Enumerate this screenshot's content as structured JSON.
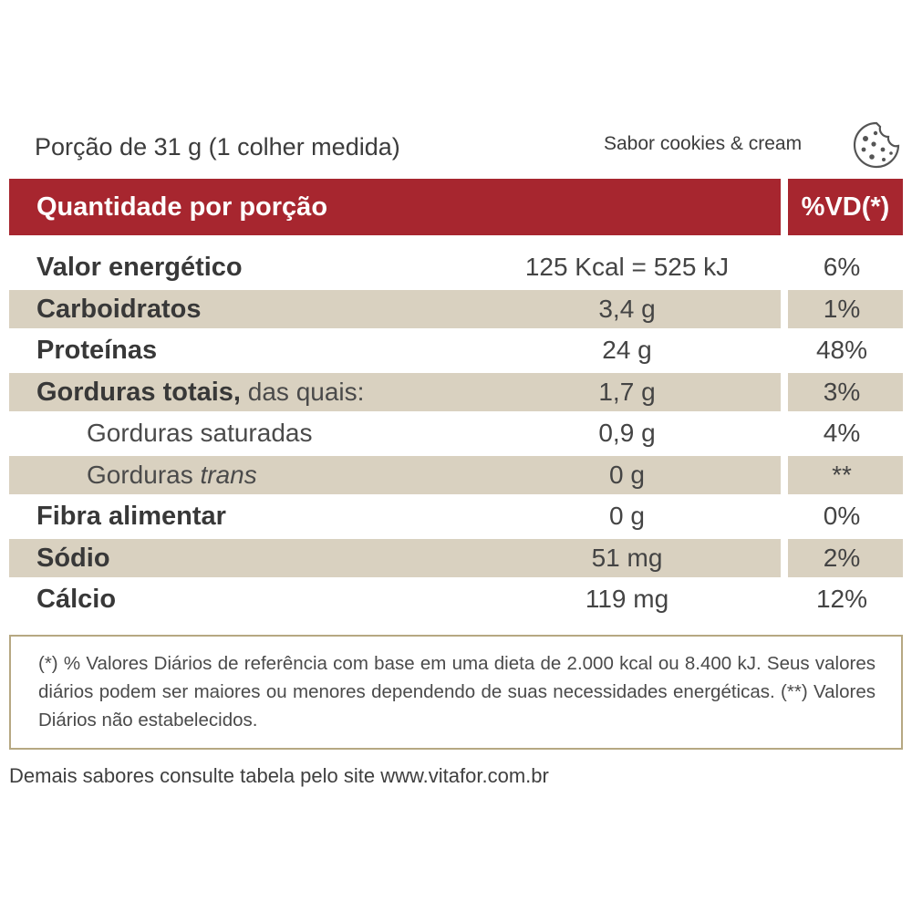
{
  "portion": "Porção de 31 g (1 colher medida)",
  "flavor": "Sabor cookies & cream",
  "flavor_icon": "cookie-icon",
  "header": {
    "left": "Quantidade por porção",
    "right": "%VD(*)"
  },
  "colors": {
    "header_bg": "#a7262f",
    "shaded_row": "#d9d1c0",
    "border": "#b6a882"
  },
  "rows": [
    {
      "name": "Valor energético",
      "amount": "125 Kcal = 525 kJ",
      "vd": "6%"
    },
    {
      "name": "Carboidratos",
      "amount": "3,4 g",
      "vd": "1%"
    },
    {
      "name": "Proteínas",
      "amount": "24 g",
      "vd": "48%"
    },
    {
      "name": "Gorduras totais,",
      "name_suffix": " das quais:",
      "amount": "1,7 g",
      "vd": "3%"
    },
    {
      "name": "Gorduras saturadas",
      "amount": "0,9 g",
      "vd": "4%"
    },
    {
      "name": "Gorduras ",
      "name_italic": "trans",
      "amount": "0 g",
      "vd": "**"
    },
    {
      "name": "Fibra alimentar",
      "amount": "0 g",
      "vd": "0%"
    },
    {
      "name": "Sódio",
      "amount": "51 mg",
      "vd": "2%"
    },
    {
      "name": "Cálcio",
      "amount": "119 mg",
      "vd": "12%"
    }
  ],
  "footnote": "(*) % Valores Diários de referência com base em uma dieta de 2.000 kcal ou 8.400 kJ. Seus valores diários podem ser maiores ou menores dependendo de suas necessidades energéticas. (**) Valores Diários não estabelecidos.",
  "more_info": "Demais sabores consulte tabela pelo site www.vitafor.com.br"
}
